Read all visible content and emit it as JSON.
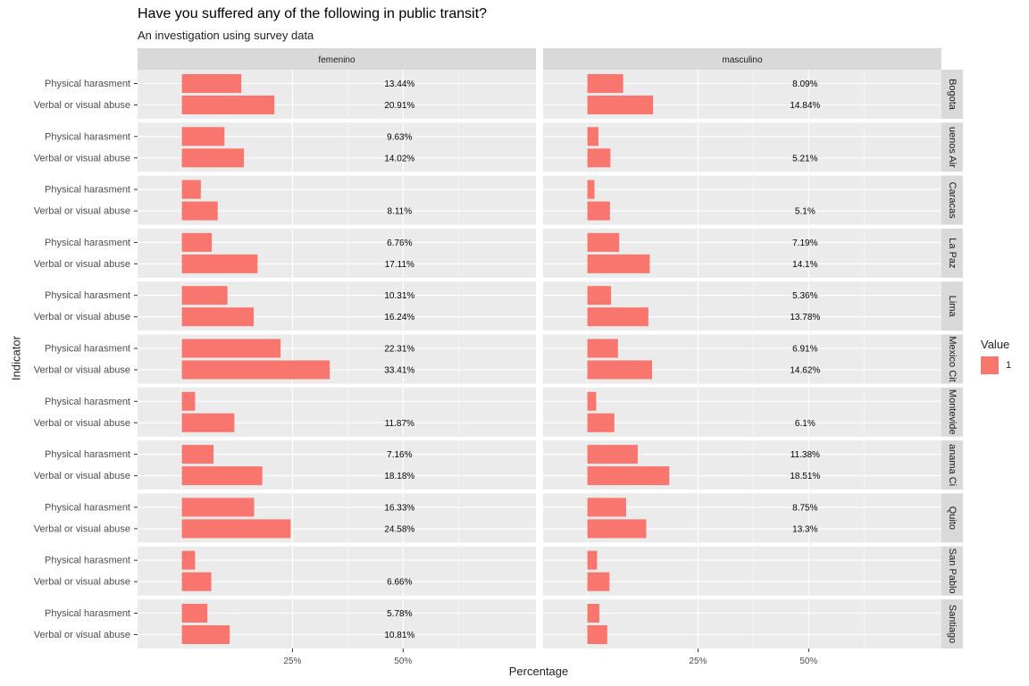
{
  "chart_data": {
    "type": "bar",
    "orientation": "horizontal",
    "title": "Have you suffered any of the following in public transit?",
    "subtitle": "An investigation using survey data",
    "xlabel": "Percentage",
    "ylabel": "Indicator",
    "xlim": [
      -10,
      80
    ],
    "x_ticks": [
      25,
      50
    ],
    "x_tick_labels": [
      "25%",
      "50%"
    ],
    "legend": {
      "title": "Value",
      "entries": [
        "1"
      ],
      "position": "right"
    },
    "bar_color": "#F8766D",
    "panel_bg": "#EBEBEB",
    "strip_bg": "#D9D9D9",
    "indicators": [
      "Physical harasment",
      "Verbal or visual abuse"
    ],
    "col_facets": [
      "femenino",
      "masculino"
    ],
    "row_facets": [
      "Bogota",
      "Buenos Aires",
      "Caracas",
      "La Paz",
      "Lima",
      "Mexico City",
      "Montevideo",
      "Panama City",
      "Quito",
      "San Pablo",
      "Santiago"
    ],
    "row_facet_labels": [
      "Bogota",
      "uenos Air",
      "Caracas",
      "La Paz",
      "Lima",
      "Mexico Cit",
      "Montevide",
      "anama Ci",
      "Quito",
      "San Pablo",
      "Santiago"
    ],
    "panels": [
      {
        "city": "Bogota",
        "sex": "femenino",
        "values": [
          13.44,
          20.91
        ],
        "labels": [
          "13.44%",
          "20.91%"
        ]
      },
      {
        "city": "Bogota",
        "sex": "masculino",
        "values": [
          8.09,
          14.84
        ],
        "labels": [
          "8.09%",
          "14.84%"
        ]
      },
      {
        "city": "Buenos Aires",
        "sex": "femenino",
        "values": [
          9.63,
          14.02
        ],
        "labels": [
          "9.63%",
          "14.02%"
        ]
      },
      {
        "city": "Buenos Aires",
        "sex": "masculino",
        "values": [
          2.5,
          5.21
        ],
        "labels": [
          "",
          "5.21%"
        ]
      },
      {
        "city": "Caracas",
        "sex": "femenino",
        "values": [
          4.3,
          8.11
        ],
        "labels": [
          "",
          "8.11%"
        ]
      },
      {
        "city": "Caracas",
        "sex": "masculino",
        "values": [
          1.6,
          5.1
        ],
        "labels": [
          "",
          "5.1%"
        ]
      },
      {
        "city": "La Paz",
        "sex": "femenino",
        "values": [
          6.76,
          17.11
        ],
        "labels": [
          "6.76%",
          "17.11%"
        ]
      },
      {
        "city": "La Paz",
        "sex": "masculino",
        "values": [
          7.19,
          14.1
        ],
        "labels": [
          "7.19%",
          "14.1%"
        ]
      },
      {
        "city": "Lima",
        "sex": "femenino",
        "values": [
          10.31,
          16.24
        ],
        "labels": [
          "10.31%",
          "16.24%"
        ]
      },
      {
        "city": "Lima",
        "sex": "masculino",
        "values": [
          5.36,
          13.78
        ],
        "labels": [
          "5.36%",
          "13.78%"
        ]
      },
      {
        "city": "Mexico City",
        "sex": "femenino",
        "values": [
          22.31,
          33.41
        ],
        "labels": [
          "22.31%",
          "33.41%"
        ]
      },
      {
        "city": "Mexico City",
        "sex": "masculino",
        "values": [
          6.91,
          14.62
        ],
        "labels": [
          "6.91%",
          "14.62%"
        ]
      },
      {
        "city": "Montevideo",
        "sex": "femenino",
        "values": [
          3.0,
          11.87
        ],
        "labels": [
          "",
          "11.87%"
        ]
      },
      {
        "city": "Montevideo",
        "sex": "masculino",
        "values": [
          2.0,
          6.1
        ],
        "labels": [
          "",
          "6.1%"
        ]
      },
      {
        "city": "Panama City",
        "sex": "femenino",
        "values": [
          7.16,
          18.18
        ],
        "labels": [
          "7.16%",
          "18.18%"
        ]
      },
      {
        "city": "Panama City",
        "sex": "masculino",
        "values": [
          11.38,
          18.51
        ],
        "labels": [
          "11.38%",
          "18.51%"
        ]
      },
      {
        "city": "Quito",
        "sex": "femenino",
        "values": [
          16.33,
          24.58
        ],
        "labels": [
          "16.33%",
          "24.58%"
        ]
      },
      {
        "city": "Quito",
        "sex": "masculino",
        "values": [
          8.75,
          13.3
        ],
        "labels": [
          "8.75%",
          "13.3%"
        ]
      },
      {
        "city": "San Pablo",
        "sex": "femenino",
        "values": [
          3.0,
          6.66
        ],
        "labels": [
          "",
          "6.66%"
        ]
      },
      {
        "city": "San Pablo",
        "sex": "masculino",
        "values": [
          2.2,
          5.0
        ],
        "labels": [
          "",
          ""
        ]
      },
      {
        "city": "Santiago",
        "sex": "femenino",
        "values": [
          5.78,
          10.81
        ],
        "labels": [
          "5.78%",
          "10.81%"
        ]
      },
      {
        "city": "Santiago",
        "sex": "masculino",
        "values": [
          2.7,
          4.5
        ],
        "labels": [
          "",
          ""
        ]
      }
    ]
  }
}
